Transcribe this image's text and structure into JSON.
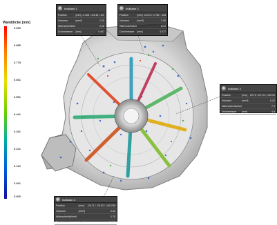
{
  "legend": {
    "title": "Wanddicke [mm]",
    "ticks": [
      "0.999",
      "0.885",
      "0.775",
      "0.661",
      "0.551",
      "0.441",
      "0.331",
      "0.221",
      "0.110",
      "0.001",
      "0.000"
    ]
  },
  "indicators": [
    {
      "title": "Indikator 1",
      "rows": [
        {
          "label": "Position",
          "unit": "[mm]",
          "value": "-1.408 / -53.46 / -69.826"
        },
        {
          "label": "Volumen",
          "unit": "[mm³]",
          "value": "1.23"
        },
        {
          "label": "Wahrscheinlichkeit",
          "unit": "",
          "value": "2.16"
        },
        {
          "label": "Durchmesser",
          "unit": "[mm]",
          "value": "0.457"
        }
      ]
    },
    {
      "title": "Indikator 2",
      "rows": [
        {
          "label": "Position",
          "unit": "[mm]",
          "value": "-0.224 / 17.96 / -106.731"
        },
        {
          "label": "Volumen",
          "unit": "[mm³]",
          "value": "0.35"
        },
        {
          "label": "Wahrscheinlichkeit",
          "unit": "",
          "value": "81.6"
        },
        {
          "label": "Durchmesser",
          "unit": "[mm]",
          "value": "4.077"
        }
      ]
    },
    {
      "title": "Indikator 3",
      "rows": [
        {
          "label": "Position",
          "unit": "[mm]",
          "value": "29.72 / 29.73 / -103.31"
        },
        {
          "label": "Volumen",
          "unit": "[mm³]",
          "value": "0.22"
        },
        {
          "label": "Wahrscheinlichkeit",
          "unit": "",
          "value": "7.3"
        },
        {
          "label": "Durchmesser",
          "unit": "[mm]",
          "value": "4.8"
        }
      ]
    },
    {
      "title": "Indikator 4",
      "rows": [
        {
          "label": "Position",
          "unit": "[mm]",
          "value": "-28.71 / -29.92 / -109.238"
        },
        {
          "label": "Volumen",
          "unit": "[mm³]",
          "value": "0.02"
        },
        {
          "label": "Wahrscheinlichkeit",
          "unit": "",
          "value": "1.70"
        },
        {
          "label": "Durchmesser",
          "unit": "[mm]",
          "value": "2.960"
        }
      ]
    }
  ]
}
